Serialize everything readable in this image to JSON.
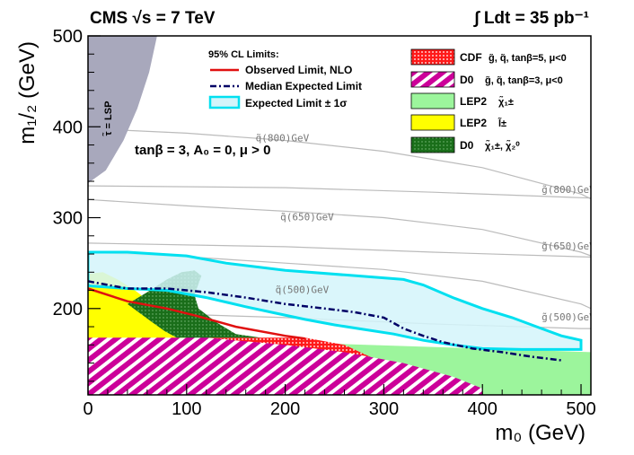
{
  "chart_data": {
    "type": "contour",
    "header_left": "CMS  √s = 7 TeV",
    "header_right": "∫ Ldt = 35 pb⁻¹",
    "xlabel": "m₀ (GeV)",
    "ylabel": "m₁/₂ (GeV)",
    "xlim": [
      0,
      510
    ],
    "ylim": [
      105,
      500
    ],
    "x_ticks": [
      0,
      100,
      200,
      300,
      400,
      500
    ],
    "y_ticks": [
      200,
      300,
      400,
      500
    ],
    "x_tick_labels": [
      "0",
      "100",
      "200",
      "300",
      "400",
      "500"
    ],
    "y_tick_labels": [
      "200",
      "300",
      "400",
      "500"
    ],
    "parameters": "tanβ = 3, A₀ = 0, μ > 0",
    "lsp_label": "τ̃ = LSP",
    "colors": {
      "observed": "#e01010",
      "expected": "#000066",
      "band_fill": "#d4f4fa",
      "band_edge": "#00e0f0",
      "cdf": "#ff1a1a",
      "d0": "#cc0099",
      "lep2_chargino": "#9cf59c",
      "lep2_slepton": "#ffff00",
      "d0_chi": "#1a6e1a",
      "lsp": "#a8a8bc",
      "contour": "#bbbbbb"
    },
    "limits_legend": {
      "title": "95% CL  Limits:",
      "observed": "Observed Limit, NLO",
      "expected": "Median Expected Limit",
      "band": "Expected Limit ± 1σ"
    },
    "excluded_legend": [
      {
        "key": "cdf",
        "label": "CDF",
        "sub": "g̃, q̃, tanβ=5, μ<0"
      },
      {
        "key": "d0",
        "label": "D0",
        "sub": "g̃, q̃, tanβ=3, μ<0"
      },
      {
        "key": "lep2_chargino",
        "label": "LEP2",
        "sub": "χ̃₁±"
      },
      {
        "key": "lep2_slepton",
        "label": "LEP2",
        "sub": "l̃±"
      },
      {
        "key": "d0_chi",
        "label": "D0",
        "sub": "χ̃₁±, χ̃₂⁰"
      }
    ],
    "series": [
      {
        "name": "Observed Limit, NLO",
        "points": [
          [
            0,
            222
          ],
          [
            40,
            208
          ],
          [
            80,
            200
          ],
          [
            110,
            192
          ],
          [
            150,
            180
          ],
          [
            200,
            170
          ],
          [
            220,
            167
          ]
        ]
      },
      {
        "name": "Median Expected Limit",
        "points": [
          [
            0,
            230
          ],
          [
            40,
            222
          ],
          [
            80,
            222
          ],
          [
            120,
            218
          ],
          [
            160,
            212
          ],
          [
            200,
            205
          ],
          [
            240,
            200
          ],
          [
            270,
            196
          ],
          [
            300,
            190
          ],
          [
            320,
            178
          ],
          [
            340,
            170
          ],
          [
            360,
            163
          ],
          [
            390,
            156
          ],
          [
            420,
            152
          ],
          [
            450,
            147
          ],
          [
            480,
            143
          ]
        ]
      },
      {
        "name": "Expected Limit ± 1σ upper",
        "points": [
          [
            0,
            262
          ],
          [
            40,
            262
          ],
          [
            100,
            258
          ],
          [
            140,
            250
          ],
          [
            200,
            242
          ],
          [
            260,
            237
          ],
          [
            320,
            232
          ],
          [
            340,
            226
          ],
          [
            370,
            212
          ],
          [
            400,
            200
          ],
          [
            430,
            190
          ],
          [
            460,
            178
          ],
          [
            480,
            170
          ],
          [
            500,
            165
          ]
        ]
      },
      {
        "name": "Expected Limit ± 1σ lower",
        "points": [
          [
            500,
            155
          ],
          [
            480,
            155
          ],
          [
            440,
            155
          ],
          [
            400,
            156
          ],
          [
            370,
            160
          ],
          [
            340,
            165
          ],
          [
            310,
            172
          ],
          [
            280,
            177
          ],
          [
            250,
            182
          ],
          [
            220,
            188
          ],
          [
            190,
            195
          ],
          [
            160,
            202
          ],
          [
            120,
            212
          ],
          [
            80,
            220
          ],
          [
            40,
            222
          ],
          [
            0,
            225
          ]
        ]
      }
    ],
    "regions": [
      {
        "name": "CDF g̃, q̃, tanβ=5, μ<0",
        "points": [
          [
            0,
            168
          ],
          [
            220,
            168
          ],
          [
            260,
            160
          ],
          [
            300,
            140
          ],
          [
            330,
            125
          ],
          [
            360,
            112
          ],
          [
            380,
            105
          ],
          [
            0,
            105
          ]
        ]
      },
      {
        "name": "D0 g̃, q̃, tanβ=3, μ<0",
        "points": [
          [
            0,
            170
          ],
          [
            100,
            170
          ],
          [
            200,
            160
          ],
          [
            260,
            152
          ],
          [
            320,
            140
          ],
          [
            370,
            125
          ],
          [
            400,
            112
          ],
          [
            400,
            105
          ],
          [
            0,
            105
          ]
        ]
      },
      {
        "name": "LEP2 χ̃₁±",
        "points": [
          [
            0,
            170
          ],
          [
            510,
            152
          ],
          [
            510,
            105
          ],
          [
            0,
            105
          ]
        ]
      },
      {
        "name": "LEP2 l̃±",
        "points": [
          [
            0,
            238
          ],
          [
            15,
            240
          ],
          [
            30,
            232
          ],
          [
            45,
            222
          ],
          [
            60,
            210
          ],
          [
            80,
            190
          ],
          [
            95,
            174
          ],
          [
            100,
            168
          ],
          [
            0,
            168
          ]
        ]
      },
      {
        "name": "D0 χ̃₁±, χ̃₂⁰",
        "points": [
          [
            40,
            205
          ],
          [
            60,
            218
          ],
          [
            80,
            232
          ],
          [
            95,
            240
          ],
          [
            108,
            242
          ],
          [
            115,
            236
          ],
          [
            108,
            215
          ],
          [
            112,
            200
          ],
          [
            130,
            185
          ],
          [
            150,
            172
          ],
          [
            175,
            168
          ],
          [
            90,
            168
          ],
          [
            78,
            175
          ],
          [
            65,
            185
          ]
        ]
      },
      {
        "name": "τ̃ = LSP",
        "points": [
          [
            0,
            500
          ],
          [
            70,
            500
          ],
          [
            62,
            460
          ],
          [
            50,
            420
          ],
          [
            36,
            385
          ],
          [
            18,
            352
          ],
          [
            0,
            338
          ]
        ]
      }
    ],
    "squark_contours": [
      {
        "label": "q̃(500)GeV",
        "points": [
          [
            0,
            262
          ],
          [
            100,
            257
          ],
          [
            200,
            250
          ],
          [
            300,
            243
          ],
          [
            400,
            230
          ],
          [
            500,
            205
          ],
          [
            530,
            190
          ]
        ]
      },
      {
        "label": "q̃(650)GeV",
        "points": [
          [
            0,
            320
          ],
          [
            100,
            313
          ],
          [
            200,
            307
          ],
          [
            300,
            300
          ],
          [
            400,
            287
          ],
          [
            500,
            262
          ],
          [
            530,
            250
          ]
        ]
      },
      {
        "label": "q̃(800)GeV",
        "points": [
          [
            0,
            398
          ],
          [
            100,
            393
          ],
          [
            200,
            385
          ],
          [
            300,
            373
          ],
          [
            400,
            355
          ],
          [
            500,
            326
          ],
          [
            530,
            310
          ]
        ]
      }
    ],
    "gluino_contours": [
      {
        "label": "g̃(500)GeV",
        "points": [
          [
            0,
            197
          ],
          [
            200,
            190
          ],
          [
            350,
            183
          ],
          [
            500,
            178
          ],
          [
            530,
            178
          ]
        ]
      },
      {
        "label": "g̃(650)GeV",
        "points": [
          [
            0,
            272
          ],
          [
            200,
            268
          ],
          [
            350,
            262
          ],
          [
            500,
            257
          ],
          [
            530,
            256
          ]
        ]
      },
      {
        "label": "g̃(800)GeV",
        "points": [
          [
            0,
            335
          ],
          [
            200,
            333
          ],
          [
            350,
            328
          ],
          [
            500,
            322
          ],
          [
            530,
            321
          ]
        ]
      }
    ],
    "contour_labels": [
      {
        "text": "q̃(800)GeV",
        "x": 170,
        "y": 384
      },
      {
        "text": "q̃(650)GeV",
        "x": 195,
        "y": 297
      },
      {
        "text": "q̃(500)GeV",
        "x": 190,
        "y": 217
      },
      {
        "text": "g̃(800)GeV",
        "x": 460,
        "y": 327
      },
      {
        "text": "g̃(650)GeV",
        "x": 460,
        "y": 265
      },
      {
        "text": "g̃(500)GeV",
        "x": 460,
        "y": 187
      }
    ]
  }
}
